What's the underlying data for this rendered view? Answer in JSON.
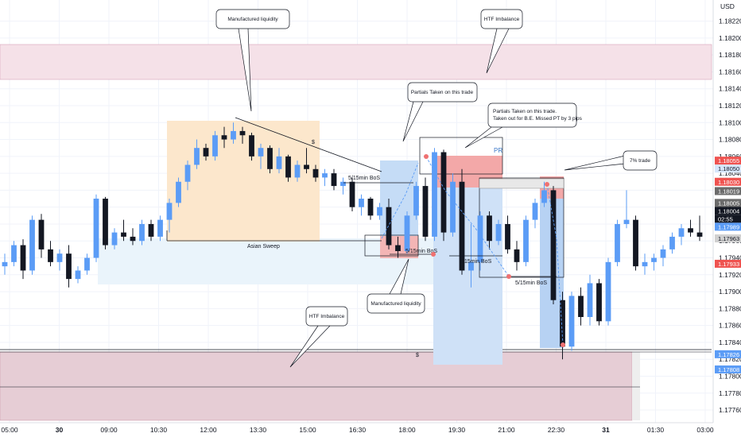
{
  "currency": "USD",
  "colors": {
    "up": "#5b9cf6",
    "down": "#131722",
    "grid": "#f0f3fa",
    "imbalance_fill": "#ead3dc",
    "imbalance_border": "#d8a4b8",
    "asian_fill": "#fbe3c4",
    "blue_zone": "#c9ddf7",
    "red_zone": "#f2a7a7",
    "light_blue": "#e3f0fb"
  },
  "price_axis": {
    "ticks": [
      "1.18220",
      "1.18200",
      "1.18180",
      "1.18160",
      "1.18140",
      "1.18120",
      "1.18100",
      "1.18080",
      "1.18060",
      "1.18040",
      "1.18020",
      "1.18000",
      "1.17980",
      "1.17960",
      "1.17940",
      "1.17920",
      "1.17900",
      "1.17880",
      "1.17860",
      "1.17840",
      "1.17820",
      "1.17800",
      "1.17780",
      "1.17760"
    ],
    "highlights": [
      {
        "text": "1.18055",
        "bg": "#ef5350",
        "fg": "#ffffff"
      },
      {
        "text": "1.18050",
        "bg": "#d6e6fb",
        "fg": "#131722"
      },
      {
        "text": "1.18030",
        "bg": "#ef5350",
        "fg": "#ffffff"
      },
      {
        "text": "1.18019",
        "bg": "#6b6b6b",
        "fg": "#ffffff"
      },
      {
        "text": "1.18005",
        "bg": "#6b6b6b",
        "fg": "#ffffff"
      },
      {
        "text": "1.18004",
        "bg": "#131722",
        "fg": "#ffffff"
      },
      {
        "text": "02:55",
        "bg": "#131722",
        "fg": "#ffffff"
      },
      {
        "text": "1.17989",
        "bg": "#5b9cf6",
        "fg": "#ffffff"
      },
      {
        "text": "1.17963",
        "bg": "#d0d0d0",
        "fg": "#131722"
      },
      {
        "text": "1.17933",
        "bg": "#ef5350",
        "fg": "#ffffff"
      },
      {
        "text": "1.17826",
        "bg": "#5b9cf6",
        "fg": "#ffffff"
      },
      {
        "text": "1.17808",
        "bg": "#5b9cf6",
        "fg": "#ffffff"
      }
    ]
  },
  "time_axis": [
    "05:00",
    "30",
    "09:00",
    "10:30",
    "12:00",
    "13:30",
    "15:00",
    "16:30",
    "18:00",
    "19:30",
    "21:00",
    "22:30",
    "31",
    "01:30",
    "03:00"
  ],
  "annotations": {
    "manufactured_liquidity_top": "Manufactured liquidity",
    "htf_imbalance_top": "HTF Imbalance",
    "partials_1": "Partials Taken on this trade",
    "partials_2_line1": "Partials Taken on this trade.",
    "partials_2_line2": "Taken out for B.E. Missed PT by 3 pips",
    "seven_pct": "7% trade",
    "manufactured_liquidity_bottom": "Manufactured liquidity",
    "htf_imbalance_bottom": "HTF Imbalance"
  },
  "labels": {
    "asian_sweep": "Asian Sweep",
    "bos_1": "5/15min BoS",
    "bos_2": "5/15min BoS",
    "bos_3": "15min BoS",
    "bos_4": "5/15min BoS",
    "pr": "PR",
    "dollar_1": "$",
    "dollar_2": "$"
  },
  "chart_data": {
    "type": "candlestick",
    "ylim": [
      1.17745,
      1.18245
    ],
    "grid": true,
    "candles": [
      [
        1.1793,
        1.17945,
        1.1792,
        1.17935
      ],
      [
        1.17935,
        1.1796,
        1.1793,
        1.17955
      ],
      [
        1.17955,
        1.17962,
        1.17915,
        1.17925
      ],
      [
        1.17925,
        1.1799,
        1.1792,
        1.17985
      ],
      [
        1.17985,
        1.17992,
        1.1794,
        1.1795
      ],
      [
        1.1795,
        1.1796,
        1.1793,
        1.17935
      ],
      [
        1.17935,
        1.1795,
        1.17925,
        1.17945
      ],
      [
        1.17945,
        1.17955,
        1.17905,
        1.17915
      ],
      [
        1.17915,
        1.1793,
        1.1791,
        1.17925
      ],
      [
        1.17925,
        1.17945,
        1.1792,
        1.1794
      ],
      [
        1.1794,
        1.18015,
        1.17935,
        1.1801
      ],
      [
        1.1801,
        1.18012,
        1.1795,
        1.17955
      ],
      [
        1.17955,
        1.17975,
        1.1795,
        1.1797
      ],
      [
        1.1797,
        1.17985,
        1.1796,
        1.17965
      ],
      [
        1.17965,
        1.17975,
        1.17955,
        1.1796
      ],
      [
        1.1796,
        1.17985,
        1.17955,
        1.1798
      ],
      [
        1.1798,
        1.17985,
        1.1796,
        1.17965
      ],
      [
        1.17965,
        1.1799,
        1.1796,
        1.17985
      ],
      [
        1.17985,
        1.1801,
        1.1797,
        1.18005
      ],
      [
        1.18005,
        1.18035,
        1.18,
        1.1803
      ],
      [
        1.1803,
        1.18055,
        1.1802,
        1.1805
      ],
      [
        1.1805,
        1.1808,
        1.18045,
        1.1807
      ],
      [
        1.1807,
        1.18075,
        1.18055,
        1.1806
      ],
      [
        1.1806,
        1.1809,
        1.18055,
        1.18085
      ],
      [
        1.18085,
        1.18095,
        1.1807,
        1.1808
      ],
      [
        1.1808,
        1.181,
        1.18075,
        1.1809
      ],
      [
        1.1809,
        1.18095,
        1.18075,
        1.18085
      ],
      [
        1.18085,
        1.18088,
        1.18055,
        1.1806
      ],
      [
        1.1806,
        1.18075,
        1.18045,
        1.1807
      ],
      [
        1.1807,
        1.18073,
        1.1804,
        1.18045
      ],
      [
        1.18045,
        1.1807,
        1.1804,
        1.1806
      ],
      [
        1.1806,
        1.18062,
        1.1803,
        1.18035
      ],
      [
        1.18035,
        1.18055,
        1.1803,
        1.1805
      ],
      [
        1.1805,
        1.1807,
        1.1804,
        1.18045
      ],
      [
        1.18045,
        1.1805,
        1.1803,
        1.18035
      ],
      [
        1.18035,
        1.18045,
        1.18025,
        1.1804
      ],
      [
        1.1804,
        1.18045,
        1.1802,
        1.18025
      ],
      [
        1.18025,
        1.18035,
        1.18015,
        1.1803
      ],
      [
        1.1803,
        1.18035,
        1.17995,
        1.18
      ],
      [
        1.18,
        1.18015,
        1.1799,
        1.1801
      ],
      [
        1.1801,
        1.18012,
        1.17985,
        1.1799
      ],
      [
        1.1799,
        1.18005,
        1.17985,
        1.18
      ],
      [
        1.18,
        1.1801,
        1.1795,
        1.17955
      ],
      [
        1.17955,
        1.17965,
        1.1794,
        1.17948
      ],
      [
        1.17948,
        1.17995,
        1.17945,
        1.1799
      ],
      [
        1.1799,
        1.1803,
        1.17985,
        1.18025
      ],
      [
        1.18025,
        1.18035,
        1.1796,
        1.17965
      ],
      [
        1.17965,
        1.1807,
        1.1796,
        1.18065
      ],
      [
        1.18065,
        1.18068,
        1.1796,
        1.1797
      ],
      [
        1.1797,
        1.1804,
        1.17965,
        1.1803
      ],
      [
        1.1803,
        1.18045,
        1.1792,
        1.17925
      ],
      [
        1.17925,
        1.1798,
        1.17905,
        1.17935
      ],
      [
        1.17935,
        1.17995,
        1.17925,
        1.1799
      ],
      [
        1.1799,
        1.17995,
        1.1795,
        1.1796
      ],
      [
        1.1796,
        1.17985,
        1.17955,
        1.1798
      ],
      [
        1.1798,
        1.1799,
        1.17945,
        1.1795
      ],
      [
        1.1795,
        1.1796,
        1.17925,
        1.17935
      ],
      [
        1.17935,
        1.1799,
        1.1793,
        1.17985
      ],
      [
        1.17985,
        1.1801,
        1.17975,
        1.18005
      ],
      [
        1.18005,
        1.1803,
        1.18,
        1.1802
      ],
      [
        1.1802,
        1.18025,
        1.17885,
        1.1789
      ],
      [
        1.1789,
        1.179,
        1.1782,
        1.17835
      ],
      [
        1.17835,
        1.179,
        1.1783,
        1.17895
      ],
      [
        1.17895,
        1.17905,
        1.1786,
        1.1787
      ],
      [
        1.1787,
        1.1792,
        1.1786,
        1.1791
      ],
      [
        1.1791,
        1.17915,
        1.1786,
        1.17865
      ],
      [
        1.17865,
        1.1794,
        1.1786,
        1.17935
      ],
      [
        1.17935,
        1.17985,
        1.1793,
        1.1798
      ],
      [
        1.1798,
        1.1802,
        1.17975,
        1.17985
      ],
      [
        1.17985,
        1.1799,
        1.17925,
        1.1793
      ],
      [
        1.1793,
        1.17945,
        1.1792,
        1.17935
      ],
      [
        1.17935,
        1.17945,
        1.17925,
        1.1794
      ],
      [
        1.1794,
        1.17955,
        1.1793,
        1.1795
      ],
      [
        1.1795,
        1.1797,
        1.17945,
        1.17965
      ],
      [
        1.17965,
        1.1798,
        1.17955,
        1.17975
      ],
      [
        1.17975,
        1.17985,
        1.17965,
        1.1797
      ],
      [
        1.1797,
        1.1799,
        1.1796,
        1.17965
      ]
    ]
  }
}
